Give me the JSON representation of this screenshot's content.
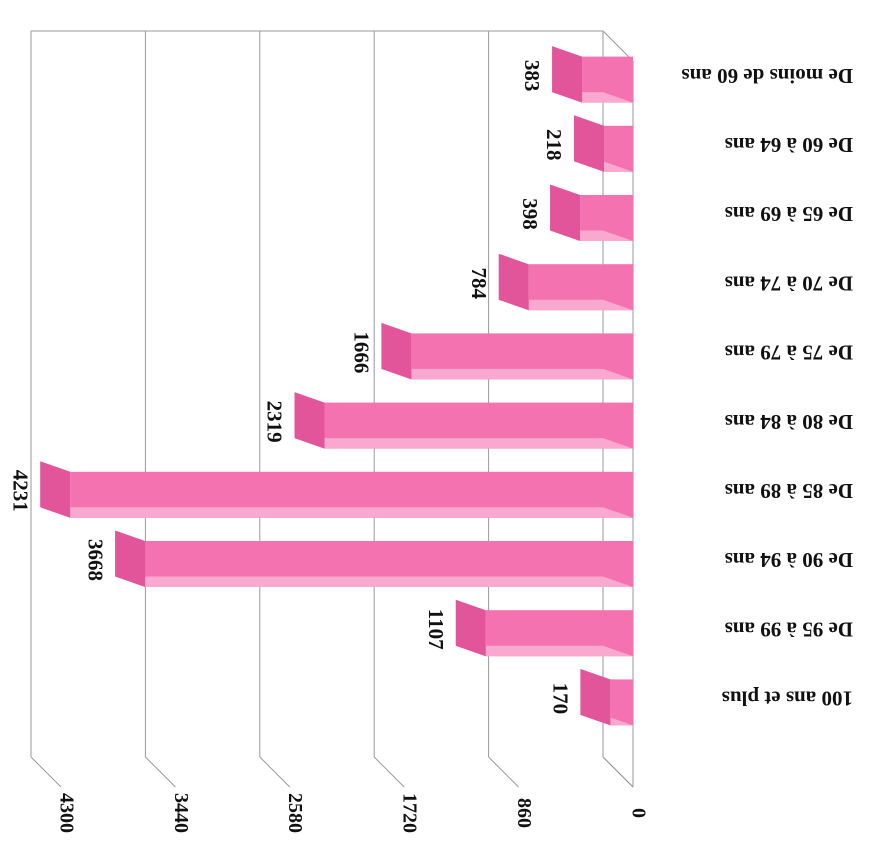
{
  "chart_data": {
    "type": "bar",
    "orientation": "horizontal, rendered rotated 180°",
    "categories": [
      "De moins de 60 ans",
      "De 60 à 64 ans",
      "De 65 à 69 ans",
      "De 70 à 74 ans",
      "De 75 à 79 ans",
      "De 80 à 84 ans",
      "De 85 à 89 ans",
      "De 90 à 94 ans",
      "De 95 à 99 ans",
      "100 ans et plus"
    ],
    "values": [
      383,
      218,
      398,
      784,
      1666,
      2319,
      4231,
      3668,
      1107,
      170
    ],
    "data_labels": [
      "383",
      "218",
      "398",
      "784",
      "1666",
      "2319",
      "4231",
      "3668",
      "1107",
      "170"
    ],
    "axis_ticks": [
      "0",
      "860",
      "1720",
      "2580",
      "3440",
      "4300"
    ],
    "ylim": [
      0,
      4300
    ],
    "grid": true,
    "legend": "none",
    "colors": {
      "bar_front": "#f472b0",
      "bar_top": "#f9a8cf",
      "bar_end": "#e2559b",
      "grid": "#9a9a9a"
    }
  }
}
